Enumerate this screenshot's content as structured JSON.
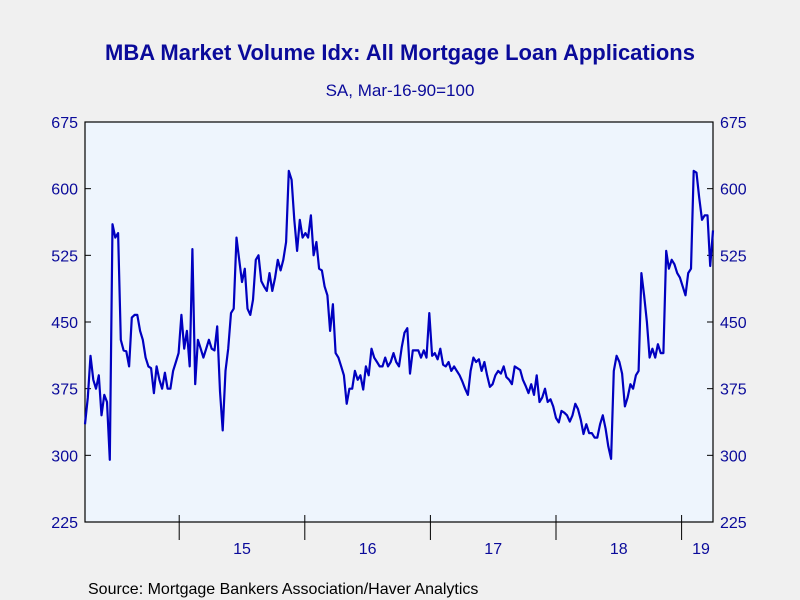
{
  "chart_data": {
    "type": "line",
    "title": "MBA Market Volume Idx: All Mortgage Loan Applications",
    "subtitle": "SA, Mar-16-90=100",
    "source": "Source:  Mortgage Bankers Association/Haver Analytics",
    "xlabel": "",
    "ylabel": "",
    "x_start": 2014.25,
    "x_end": 2019.25,
    "xlim": [
      2014.25,
      2019.25
    ],
    "ylim": [
      225,
      675
    ],
    "yticks": [
      225,
      300,
      375,
      450,
      525,
      600,
      675
    ],
    "year_boundaries": [
      2015,
      2016,
      2017,
      2018,
      2019
    ],
    "x_tick_labels": [
      {
        "x": 2015.5,
        "label": "15"
      },
      {
        "x": 2016.5,
        "label": "16"
      },
      {
        "x": 2017.5,
        "label": "17"
      },
      {
        "x": 2018.5,
        "label": "18"
      },
      {
        "x": 2019.5,
        "label": "19"
      }
    ],
    "grid": false,
    "colors": {
      "line": "#0000c0",
      "text": "#0a0a9a",
      "plot_bg": "#eef5fd",
      "page_bg": "#f0f0f0"
    },
    "series": [
      {
        "values": [
          335,
          365,
          412,
          385,
          375,
          390,
          345,
          368,
          360,
          295,
          560,
          545,
          550,
          430,
          418,
          417,
          400,
          455,
          458,
          458,
          440,
          430,
          410,
          400,
          398,
          370,
          400,
          385,
          375,
          393,
          375,
          375,
          395,
          405,
          415,
          458,
          420,
          440,
          400,
          532,
          380,
          430,
          420,
          410,
          420,
          430,
          420,
          418,
          445,
          372,
          328,
          395,
          420,
          460,
          465,
          545,
          520,
          495,
          510,
          465,
          458,
          475,
          520,
          525,
          496,
          490,
          485,
          505,
          485,
          500,
          520,
          508,
          520,
          540,
          620,
          610,
          565,
          530,
          565,
          545,
          550,
          545,
          570,
          525,
          540,
          510,
          508,
          490,
          480,
          440,
          470,
          415,
          410,
          400,
          390,
          358,
          375,
          375,
          395,
          385,
          390,
          374,
          400,
          390,
          420,
          410,
          405,
          400,
          400,
          410,
          400,
          405,
          415,
          405,
          400,
          422,
          438,
          443,
          392,
          418,
          418,
          418,
          410,
          418,
          410,
          460,
          412,
          415,
          408,
          420,
          402,
          400,
          405,
          395,
          400,
          395,
          390,
          383,
          375,
          368,
          395,
          410,
          405,
          408,
          395,
          405,
          390,
          377,
          380,
          390,
          395,
          392,
          400,
          388,
          385,
          380,
          400,
          398,
          396,
          385,
          378,
          370,
          380,
          368,
          390,
          360,
          365,
          375,
          360,
          363,
          355,
          342,
          337,
          350,
          348,
          345,
          338,
          345,
          358,
          352,
          340,
          324,
          335,
          325,
          325,
          320,
          320,
          335,
          345,
          330,
          310,
          296,
          395,
          412,
          405,
          392,
          355,
          365,
          380,
          375,
          390,
          395,
          505,
          480,
          450,
          410,
          420,
          410,
          425,
          415,
          415,
          530,
          510,
          520,
          515,
          505,
          500,
          490,
          480,
          505,
          510,
          620,
          618,
          590,
          565,
          570,
          570,
          513,
          553
        ]
      }
    ]
  }
}
